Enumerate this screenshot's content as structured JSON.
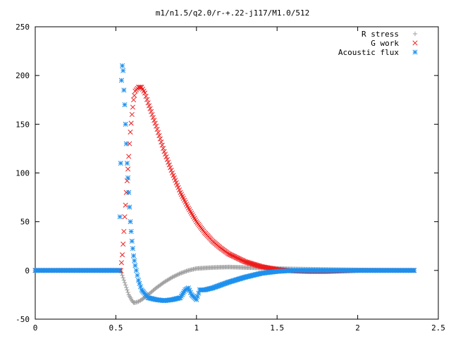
{
  "chart_data": {
    "type": "scatter",
    "title": "m1/n1.5/q2.0/r-+.22-j117/M1.0/512",
    "xlabel": "",
    "ylabel": "",
    "xlim": [
      0,
      2.5
    ],
    "ylim": [
      -50,
      250
    ],
    "xticks": [
      "0",
      "0.5",
      "1",
      "1.5",
      "2",
      "2.5"
    ],
    "yticks": [
      "-50",
      "0",
      "50",
      "100",
      "150",
      "200",
      "250"
    ],
    "grid": false,
    "legend_position": "top-right",
    "series": [
      {
        "name": "R stress",
        "marker": "plus",
        "color": "#a0a0a0",
        "x": [
          0.0,
          0.2,
          0.4,
          0.5,
          0.53,
          0.54,
          0.55,
          0.56,
          0.57,
          0.58,
          0.59,
          0.6,
          0.61,
          0.62,
          0.64,
          0.66,
          0.7,
          0.75,
          0.8,
          0.85,
          0.9,
          0.95,
          1.0,
          1.1,
          1.2,
          1.3,
          1.4,
          1.5,
          1.6,
          1.8,
          2.0,
          2.2,
          2.35
        ],
        "y": [
          0,
          0,
          0,
          0,
          0,
          -5,
          -10,
          -15,
          -20,
          -25,
          -28,
          -31,
          -33,
          -33,
          -32,
          -30,
          -25,
          -18,
          -12,
          -7,
          -3,
          0,
          2,
          3,
          3.5,
          3,
          2.5,
          2,
          1.5,
          1,
          0.5,
          0.2,
          0
        ]
      },
      {
        "name": "G work",
        "marker": "cross",
        "color": "#ee1c1c",
        "x": [
          0.0,
          0.2,
          0.4,
          0.5,
          0.53,
          0.54,
          0.545,
          0.55,
          0.555,
          0.56,
          0.565,
          0.57,
          0.575,
          0.58,
          0.585,
          0.59,
          0.6,
          0.61,
          0.62,
          0.64,
          0.66,
          0.68,
          0.7,
          0.75,
          0.8,
          0.85,
          0.9,
          0.95,
          1.0,
          1.05,
          1.1,
          1.15,
          1.2,
          1.3,
          1.4,
          1.5,
          1.6,
          1.7,
          1.8,
          1.9,
          2.0,
          2.2,
          2.35
        ],
        "y": [
          0,
          0,
          0,
          0,
          0,
          16,
          27,
          40,
          55,
          67,
          80,
          92,
          104,
          117,
          130,
          142,
          160,
          175,
          184,
          188,
          188,
          182,
          172,
          148,
          122,
          100,
          80,
          64,
          50,
          39,
          30,
          23,
          17,
          9,
          4,
          1,
          -0.5,
          -1,
          -1,
          -0.5,
          0,
          0,
          0
        ]
      },
      {
        "name": "Acoustic flux",
        "marker": "star",
        "color": "#1e90ee",
        "x": [
          0.0,
          0.2,
          0.4,
          0.5,
          0.52,
          0.53,
          0.535,
          0.54,
          0.545,
          0.55,
          0.555,
          0.56,
          0.565,
          0.57,
          0.575,
          0.58,
          0.585,
          0.59,
          0.6,
          0.61,
          0.62,
          0.64,
          0.66,
          0.7,
          0.75,
          0.8,
          0.85,
          0.9,
          0.93,
          0.95,
          0.97,
          1.0,
          1.02,
          1.05,
          1.1,
          1.2,
          1.3,
          1.4,
          1.5,
          1.6,
          1.8,
          2.0,
          2.2,
          2.35
        ],
        "y": [
          0,
          0,
          0,
          0,
          0,
          110,
          195,
          210,
          205,
          185,
          170,
          150,
          130,
          110,
          95,
          80,
          65,
          50,
          30,
          15,
          5,
          -10,
          -20,
          -28,
          -30,
          -31,
          -30,
          -28,
          -20,
          -18,
          -25,
          -30,
          -20,
          -20,
          -18,
          -12,
          -7,
          -3,
          -1,
          0,
          0,
          0,
          0,
          0
        ]
      }
    ]
  }
}
